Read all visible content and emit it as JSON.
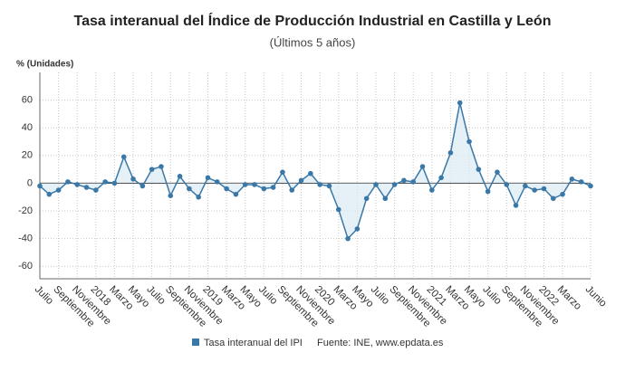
{
  "chart_data": {
    "type": "line",
    "title": "Tasa interanual del Índice de Producción Industrial en Castilla y León",
    "subtitle": "(Últimos 5 años)",
    "y_label": "% (Unidades)",
    "source": "Fuente: INE, www.epdata.es",
    "categories": [
      "Julio",
      null,
      "Septiembre",
      null,
      "Noviembre",
      null,
      "2018",
      null,
      "Marzo",
      null,
      "Mayo",
      null,
      "Julio",
      null,
      "Septiembre",
      null,
      "Noviembre",
      null,
      "2019",
      null,
      "Marzo",
      null,
      "Mayo",
      null,
      "Julio",
      null,
      "Septiembre",
      null,
      "Noviembre",
      null,
      "2020",
      null,
      "Marzo",
      null,
      "Mayo",
      null,
      "Julio",
      null,
      "Septiembre",
      null,
      "Noviembre",
      null,
      "2021",
      null,
      "Marzo",
      null,
      "Mayo",
      null,
      "Julio",
      null,
      "Septiembre",
      null,
      "Noviembre",
      null,
      "2022",
      null,
      "Marzo",
      null,
      null,
      "Junio"
    ],
    "series": [
      {
        "name": "Tasa interanual del IPI",
        "color": "#3a78a8",
        "values": [
          -2,
          -8,
          -5,
          1,
          -1,
          -3,
          -5,
          1,
          0,
          19,
          3,
          -2,
          10,
          12,
          -9,
          5,
          -4,
          -10,
          4,
          1,
          -4,
          -8,
          -1,
          -1,
          -4,
          -3,
          8,
          -5,
          2,
          7,
          -1,
          -2,
          -19,
          -40,
          -33,
          -11,
          -1,
          -11,
          -1,
          2,
          1,
          12,
          -5,
          4,
          22,
          58,
          30,
          10,
          -6,
          8,
          -1,
          -16,
          -2,
          -5,
          -4,
          -11,
          -8,
          3,
          1,
          -2
        ]
      }
    ],
    "ylim": [
      -69,
      80
    ],
    "yticks": [
      -60,
      -40,
      -20,
      0,
      20,
      40,
      60
    ],
    "grid": true
  }
}
